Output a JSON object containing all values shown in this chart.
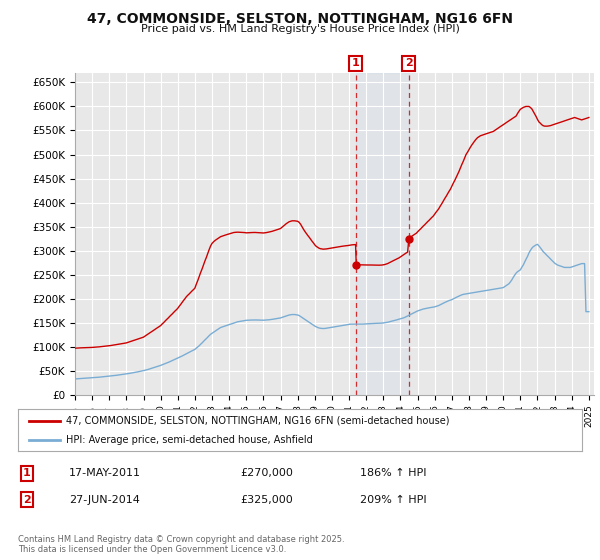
{
  "title": "47, COMMONSIDE, SELSTON, NOTTINGHAM, NG16 6FN",
  "subtitle": "Price paid vs. HM Land Registry's House Price Index (HPI)",
  "ylim": [
    0,
    670000
  ],
  "yticks": [
    0,
    50000,
    100000,
    150000,
    200000,
    250000,
    300000,
    350000,
    400000,
    450000,
    500000,
    550000,
    600000,
    650000
  ],
  "ytick_labels": [
    "£0",
    "£50K",
    "£100K",
    "£150K",
    "£200K",
    "£250K",
    "£300K",
    "£350K",
    "£400K",
    "£450K",
    "£500K",
    "£550K",
    "£600K",
    "£650K"
  ],
  "background_color": "#ffffff",
  "plot_bg_color": "#e8e8e8",
  "grid_color": "#ffffff",
  "hpi_color": "#7aadd4",
  "price_color": "#cc0000",
  "marker1_date": 2011.38,
  "marker1_price": 270000,
  "marker1_label": "1",
  "marker2_date": 2014.49,
  "marker2_price": 325000,
  "marker2_label": "2",
  "legend_line1": "47, COMMONSIDE, SELSTON, NOTTINGHAM, NG16 6FN (semi-detached house)",
  "legend_line2": "HPI: Average price, semi-detached house, Ashfield",
  "footnote": "Contains HM Land Registry data © Crown copyright and database right 2025.\nThis data is licensed under the Open Government Licence v3.0.",
  "table_row1_num": "1",
  "table_row1_date": "17-MAY-2011",
  "table_row1_price": "£270,000",
  "table_row1_hpi": "186% ↑ HPI",
  "table_row2_num": "2",
  "table_row2_date": "27-JUN-2014",
  "table_row2_price": "£325,000",
  "table_row2_hpi": "209% ↑ HPI",
  "hpi_years": [
    1995.0,
    1995.08,
    1995.17,
    1995.25,
    1995.33,
    1995.42,
    1995.5,
    1995.58,
    1995.67,
    1995.75,
    1995.83,
    1995.92,
    1996.0,
    1996.08,
    1996.17,
    1996.25,
    1996.33,
    1996.42,
    1996.5,
    1996.58,
    1996.67,
    1996.75,
    1996.83,
    1996.92,
    1997.0,
    1997.08,
    1997.17,
    1997.25,
    1997.33,
    1997.42,
    1997.5,
    1997.58,
    1997.67,
    1997.75,
    1997.83,
    1997.92,
    1998.0,
    1998.08,
    1998.17,
    1998.25,
    1998.33,
    1998.42,
    1998.5,
    1998.58,
    1998.67,
    1998.75,
    1998.83,
    1998.92,
    1999.0,
    1999.08,
    1999.17,
    1999.25,
    1999.33,
    1999.42,
    1999.5,
    1999.58,
    1999.67,
    1999.75,
    1999.83,
    1999.92,
    2000.0,
    2000.08,
    2000.17,
    2000.25,
    2000.33,
    2000.42,
    2000.5,
    2000.58,
    2000.67,
    2000.75,
    2000.83,
    2000.92,
    2001.0,
    2001.08,
    2001.17,
    2001.25,
    2001.33,
    2001.42,
    2001.5,
    2001.58,
    2001.67,
    2001.75,
    2001.83,
    2001.92,
    2002.0,
    2002.08,
    2002.17,
    2002.25,
    2002.33,
    2002.42,
    2002.5,
    2002.58,
    2002.67,
    2002.75,
    2002.83,
    2002.92,
    2003.0,
    2003.08,
    2003.17,
    2003.25,
    2003.33,
    2003.42,
    2003.5,
    2003.58,
    2003.67,
    2003.75,
    2003.83,
    2003.92,
    2004.0,
    2004.08,
    2004.17,
    2004.25,
    2004.33,
    2004.42,
    2004.5,
    2004.58,
    2004.67,
    2004.75,
    2004.83,
    2004.92,
    2005.0,
    2005.08,
    2005.17,
    2005.25,
    2005.33,
    2005.42,
    2005.5,
    2005.58,
    2005.67,
    2005.75,
    2005.83,
    2005.92,
    2006.0,
    2006.08,
    2006.17,
    2006.25,
    2006.33,
    2006.42,
    2006.5,
    2006.58,
    2006.67,
    2006.75,
    2006.83,
    2006.92,
    2007.0,
    2007.08,
    2007.17,
    2007.25,
    2007.33,
    2007.42,
    2007.5,
    2007.58,
    2007.67,
    2007.75,
    2007.83,
    2007.92,
    2008.0,
    2008.08,
    2008.17,
    2008.25,
    2008.33,
    2008.42,
    2008.5,
    2008.58,
    2008.67,
    2008.75,
    2008.83,
    2008.92,
    2009.0,
    2009.08,
    2009.17,
    2009.25,
    2009.33,
    2009.42,
    2009.5,
    2009.58,
    2009.67,
    2009.75,
    2009.83,
    2009.92,
    2010.0,
    2010.08,
    2010.17,
    2010.25,
    2010.33,
    2010.42,
    2010.5,
    2010.58,
    2010.67,
    2010.75,
    2010.83,
    2010.92,
    2011.0,
    2011.08,
    2011.17,
    2011.25,
    2011.33,
    2011.42,
    2011.5,
    2011.58,
    2011.67,
    2011.75,
    2011.83,
    2011.92,
    2012.0,
    2012.08,
    2012.17,
    2012.25,
    2012.33,
    2012.42,
    2012.5,
    2012.58,
    2012.67,
    2012.75,
    2012.83,
    2012.92,
    2013.0,
    2013.08,
    2013.17,
    2013.25,
    2013.33,
    2013.42,
    2013.5,
    2013.58,
    2013.67,
    2013.75,
    2013.83,
    2013.92,
    2014.0,
    2014.08,
    2014.17,
    2014.25,
    2014.33,
    2014.42,
    2014.5,
    2014.58,
    2014.67,
    2014.75,
    2014.83,
    2014.92,
    2015.0,
    2015.08,
    2015.17,
    2015.25,
    2015.33,
    2015.42,
    2015.5,
    2015.58,
    2015.67,
    2015.75,
    2015.83,
    2015.92,
    2016.0,
    2016.08,
    2016.17,
    2016.25,
    2016.33,
    2016.42,
    2016.5,
    2016.58,
    2016.67,
    2016.75,
    2016.83,
    2016.92,
    2017.0,
    2017.08,
    2017.17,
    2017.25,
    2017.33,
    2017.42,
    2017.5,
    2017.58,
    2017.67,
    2017.75,
    2017.83,
    2017.92,
    2018.0,
    2018.08,
    2018.17,
    2018.25,
    2018.33,
    2018.42,
    2018.5,
    2018.58,
    2018.67,
    2018.75,
    2018.83,
    2018.92,
    2019.0,
    2019.08,
    2019.17,
    2019.25,
    2019.33,
    2019.42,
    2019.5,
    2019.58,
    2019.67,
    2019.75,
    2019.83,
    2019.92,
    2020.0,
    2020.08,
    2020.17,
    2020.25,
    2020.33,
    2020.42,
    2020.5,
    2020.58,
    2020.67,
    2020.75,
    2020.83,
    2020.92,
    2021.0,
    2021.08,
    2021.17,
    2021.25,
    2021.33,
    2021.42,
    2021.5,
    2021.58,
    2021.67,
    2021.75,
    2021.83,
    2021.92,
    2022.0,
    2022.08,
    2022.17,
    2022.25,
    2022.33,
    2022.42,
    2022.5,
    2022.58,
    2022.67,
    2022.75,
    2022.83,
    2022.92,
    2023.0,
    2023.08,
    2023.17,
    2023.25,
    2023.33,
    2023.42,
    2023.5,
    2023.58,
    2023.67,
    2023.75,
    2023.83,
    2023.92,
    2024.0,
    2024.08,
    2024.17,
    2024.25,
    2024.33,
    2024.42,
    2024.5,
    2024.58,
    2024.67,
    2024.75,
    2024.83,
    2024.92,
    2025.0
  ],
  "hpi_values": [
    33000,
    33200,
    33400,
    33600,
    33800,
    34000,
    34200,
    34400,
    34600,
    34800,
    35000,
    35200,
    35500,
    35700,
    35900,
    36100,
    36400,
    36700,
    37000,
    37300,
    37600,
    37900,
    38200,
    38400,
    38700,
    39000,
    39400,
    39800,
    40200,
    40600,
    41000,
    41400,
    41800,
    42200,
    42600,
    43000,
    43500,
    44000,
    44500,
    45000,
    45500,
    46000,
    46600,
    47200,
    47800,
    48400,
    49000,
    49600,
    50200,
    51000,
    51800,
    52600,
    53500,
    54400,
    55300,
    56200,
    57200,
    58100,
    59100,
    60100,
    61200,
    62300,
    63400,
    64600,
    65800,
    67000,
    68300,
    69600,
    70900,
    72200,
    73500,
    74900,
    76300,
    77700,
    79200,
    80700,
    82200,
    83800,
    85400,
    86900,
    88500,
    90000,
    91500,
    93000,
    94500,
    97000,
    99500,
    102000,
    105000,
    108000,
    111000,
    114000,
    117000,
    120000,
    123000,
    126000,
    128000,
    130000,
    132000,
    134000,
    136000,
    138000,
    140000,
    141000,
    142000,
    143000,
    144000,
    145000,
    146000,
    147000,
    148000,
    149000,
    150000,
    151000,
    152000,
    152500,
    153000,
    153500,
    154000,
    154500,
    155000,
    155200,
    155400,
    155500,
    155600,
    155700,
    155800,
    155700,
    155600,
    155500,
    155400,
    155300,
    155200,
    155400,
    155600,
    155800,
    156100,
    156500,
    156900,
    157400,
    157900,
    158400,
    158900,
    159500,
    160000,
    161000,
    162000,
    163000,
    164000,
    165000,
    166000,
    166500,
    167000,
    167000,
    167000,
    166500,
    166000,
    165000,
    163000,
    161000,
    159000,
    157000,
    155000,
    153000,
    151000,
    149000,
    147000,
    145000,
    143000,
    141500,
    140000,
    139000,
    138500,
    138000,
    138000,
    138000,
    138500,
    139000,
    139500,
    140000,
    140500,
    141000,
    141500,
    142000,
    142500,
    143000,
    143500,
    144000,
    144500,
    145000,
    145500,
    146000,
    146500,
    147000,
    147000,
    147000,
    147000,
    147000,
    147000,
    147000,
    147000,
    147000,
    147200,
    147400,
    147600,
    147800,
    148000,
    148200,
    148400,
    148500,
    148600,
    148700,
    148800,
    148900,
    149000,
    149200,
    149500,
    150000,
    150500,
    151000,
    151700,
    152500,
    153200,
    154000,
    154800,
    155600,
    156400,
    157200,
    158000,
    159000,
    160000,
    161000,
    162500,
    164000,
    165500,
    167000,
    168500,
    170000,
    171500,
    173000,
    174500,
    175500,
    176500,
    177500,
    178500,
    179200,
    180000,
    180500,
    181000,
    181500,
    182000,
    182500,
    183000,
    184000,
    185000,
    186000,
    187500,
    189000,
    190500,
    192000,
    193500,
    195000,
    196000,
    197000,
    198000,
    199500,
    201000,
    202500,
    204000,
    205500,
    207000,
    208000,
    209000,
    209500,
    210000,
    210500,
    211000,
    211500,
    212000,
    212500,
    213000,
    213500,
    214000,
    214500,
    215000,
    215500,
    216000,
    216500,
    217000,
    217500,
    218000,
    218500,
    219000,
    219500,
    220000,
    220500,
    221000,
    221500,
    222000,
    222500,
    223000,
    225000,
    227000,
    229000,
    231000,
    235000,
    239000,
    244000,
    249000,
    253000,
    256000,
    258000,
    260000,
    265000,
    270000,
    276000,
    282000,
    288000,
    295000,
    300000,
    305000,
    308000,
    310000,
    312000,
    313000,
    310000,
    306000,
    302000,
    298000,
    295000,
    292000,
    289000,
    286000,
    283000,
    280000,
    277000,
    274000,
    272000,
    270000,
    269000,
    268000,
    267000,
    266000,
    265000,
    265000,
    265000,
    265000,
    265000,
    266000,
    267000,
    268000,
    269000,
    270000,
    271000,
    272000,
    273000,
    273000,
    273000,
    173000,
    173000,
    173000
  ],
  "price_years": [
    1995.0,
    1995.08,
    1995.17,
    1995.25,
    1995.33,
    1995.42,
    1995.5,
    1995.58,
    1995.67,
    1995.75,
    1995.83,
    1995.92,
    1996.0,
    1996.08,
    1996.17,
    1996.25,
    1996.33,
    1996.42,
    1996.5,
    1996.58,
    1996.67,
    1996.75,
    1996.83,
    1996.92,
    1997.0,
    1997.08,
    1997.17,
    1997.25,
    1997.33,
    1997.42,
    1997.5,
    1997.58,
    1997.67,
    1997.75,
    1997.83,
    1997.92,
    1998.0,
    1998.08,
    1998.17,
    1998.25,
    1998.33,
    1998.42,
    1998.5,
    1998.58,
    1998.67,
    1998.75,
    1998.83,
    1998.92,
    1999.0,
    1999.08,
    1999.17,
    1999.25,
    1999.33,
    1999.42,
    1999.5,
    1999.58,
    1999.67,
    1999.75,
    1999.83,
    1999.92,
    2000.0,
    2000.08,
    2000.17,
    2000.25,
    2000.33,
    2000.42,
    2000.5,
    2000.58,
    2000.67,
    2000.75,
    2000.83,
    2000.92,
    2001.0,
    2001.08,
    2001.17,
    2001.25,
    2001.33,
    2001.42,
    2001.5,
    2001.58,
    2001.67,
    2001.75,
    2001.83,
    2001.92,
    2002.0,
    2002.08,
    2002.17,
    2002.25,
    2002.33,
    2002.42,
    2002.5,
    2002.58,
    2002.67,
    2002.75,
    2002.83,
    2002.92,
    2003.0,
    2003.08,
    2003.17,
    2003.25,
    2003.33,
    2003.42,
    2003.5,
    2003.58,
    2003.67,
    2003.75,
    2003.83,
    2003.92,
    2004.0,
    2004.08,
    2004.17,
    2004.25,
    2004.33,
    2004.42,
    2004.5,
    2004.58,
    2004.67,
    2004.75,
    2004.83,
    2004.92,
    2005.0,
    2005.08,
    2005.17,
    2005.25,
    2005.33,
    2005.42,
    2005.5,
    2005.58,
    2005.67,
    2005.75,
    2005.83,
    2005.92,
    2006.0,
    2006.08,
    2006.17,
    2006.25,
    2006.33,
    2006.42,
    2006.5,
    2006.58,
    2006.67,
    2006.75,
    2006.83,
    2006.92,
    2007.0,
    2007.08,
    2007.17,
    2007.25,
    2007.33,
    2007.42,
    2007.5,
    2007.58,
    2007.67,
    2007.75,
    2007.83,
    2007.92,
    2008.0,
    2008.08,
    2008.17,
    2008.25,
    2008.33,
    2008.42,
    2008.5,
    2008.58,
    2008.67,
    2008.75,
    2008.83,
    2008.92,
    2009.0,
    2009.08,
    2009.17,
    2009.25,
    2009.33,
    2009.42,
    2009.5,
    2009.58,
    2009.67,
    2009.75,
    2009.83,
    2009.92,
    2010.0,
    2010.08,
    2010.17,
    2010.25,
    2010.33,
    2010.42,
    2010.5,
    2010.58,
    2010.67,
    2010.75,
    2010.83,
    2010.92,
    2011.0,
    2011.08,
    2011.17,
    2011.25,
    2011.33,
    2011.38,
    2011.42,
    2011.5,
    2011.58,
    2011.67,
    2011.75,
    2011.83,
    2011.92,
    2012.0,
    2012.08,
    2012.17,
    2012.25,
    2012.33,
    2012.42,
    2012.5,
    2012.58,
    2012.67,
    2012.75,
    2012.83,
    2012.92,
    2013.0,
    2013.08,
    2013.17,
    2013.25,
    2013.33,
    2013.42,
    2013.5,
    2013.58,
    2013.67,
    2013.75,
    2013.83,
    2013.92,
    2014.0,
    2014.08,
    2014.17,
    2014.25,
    2014.33,
    2014.42,
    2014.49,
    2014.5,
    2014.58,
    2014.67,
    2014.75,
    2014.83,
    2014.92,
    2015.0,
    2015.08,
    2015.17,
    2015.25,
    2015.33,
    2015.42,
    2015.5,
    2015.58,
    2015.67,
    2015.75,
    2015.83,
    2015.92,
    2016.0,
    2016.08,
    2016.17,
    2016.25,
    2016.33,
    2016.42,
    2016.5,
    2016.58,
    2016.67,
    2016.75,
    2016.83,
    2016.92,
    2017.0,
    2017.08,
    2017.17,
    2017.25,
    2017.33,
    2017.42,
    2017.5,
    2017.58,
    2017.67,
    2017.75,
    2017.83,
    2017.92,
    2018.0,
    2018.08,
    2018.17,
    2018.25,
    2018.33,
    2018.42,
    2018.5,
    2018.58,
    2018.67,
    2018.75,
    2018.83,
    2018.92,
    2019.0,
    2019.08,
    2019.17,
    2019.25,
    2019.33,
    2019.42,
    2019.5,
    2019.58,
    2019.67,
    2019.75,
    2019.83,
    2019.92,
    2020.0,
    2020.08,
    2020.17,
    2020.25,
    2020.33,
    2020.42,
    2020.5,
    2020.58,
    2020.67,
    2020.75,
    2020.83,
    2020.92,
    2021.0,
    2021.08,
    2021.17,
    2021.25,
    2021.33,
    2021.42,
    2021.5,
    2021.58,
    2021.67,
    2021.75,
    2021.83,
    2021.92,
    2022.0,
    2022.08,
    2022.17,
    2022.25,
    2022.33,
    2022.42,
    2022.5,
    2022.58,
    2022.67,
    2022.75,
    2022.83,
    2022.92,
    2023.0,
    2023.08,
    2023.17,
    2023.25,
    2023.33,
    2023.42,
    2023.5,
    2023.58,
    2023.67,
    2023.75,
    2023.83,
    2023.92,
    2024.0,
    2024.08,
    2024.17,
    2024.25,
    2024.33,
    2024.42,
    2024.5,
    2024.58,
    2024.67,
    2024.75,
    2024.83,
    2024.92,
    2025.0
  ],
  "price_values": [
    97000,
    97200,
    97400,
    97600,
    97700,
    97800,
    97900,
    98000,
    98100,
    98200,
    98300,
    98400,
    98600,
    98800,
    99000,
    99200,
    99500,
    99800,
    100100,
    100400,
    100700,
    101000,
    101300,
    101600,
    102000,
    102500,
    103000,
    103500,
    104000,
    104500,
    105000,
    105500,
    106000,
    106500,
    107000,
    107500,
    108000,
    109000,
    110000,
    111000,
    112000,
    113000,
    114000,
    115000,
    116000,
    117000,
    118000,
    119000,
    120000,
    122000,
    124000,
    126000,
    128000,
    130000,
    132000,
    134000,
    136000,
    138000,
    140000,
    142000,
    144000,
    147000,
    150000,
    153000,
    156000,
    159000,
    162000,
    165000,
    168000,
    171000,
    174000,
    177000,
    180000,
    184000,
    188000,
    192000,
    196000,
    200000,
    204000,
    207000,
    210000,
    213000,
    216000,
    219000,
    222000,
    230000,
    238000,
    246000,
    254000,
    262000,
    270000,
    278000,
    286000,
    294000,
    302000,
    310000,
    315000,
    318000,
    321000,
    323000,
    325000,
    327000,
    329000,
    330000,
    331000,
    332000,
    333000,
    334000,
    335000,
    336000,
    337000,
    337500,
    338000,
    338200,
    338400,
    338300,
    338100,
    337900,
    337700,
    337500,
    337000,
    337200,
    337400,
    337500,
    337600,
    337700,
    337800,
    337600,
    337400,
    337200,
    337000,
    336800,
    336700,
    337000,
    337500,
    338000,
    338700,
    339400,
    340100,
    341000,
    342000,
    343000,
    344000,
    345000,
    346000,
    348500,
    351000,
    353500,
    356000,
    358000,
    360000,
    361000,
    362000,
    362000,
    362000,
    361500,
    361000,
    359000,
    355000,
    350000,
    345000,
    340000,
    336000,
    332000,
    328000,
    324000,
    320000,
    316000,
    312000,
    309000,
    307000,
    305000,
    304000,
    303500,
    303000,
    303200,
    303500,
    304000,
    304500,
    305000,
    305500,
    306000,
    306500,
    307000,
    307500,
    308000,
    308500,
    309000,
    309500,
    310000,
    310200,
    310500,
    311000,
    311500,
    312000,
    312300,
    312500,
    312600,
    270000,
    270200,
    270300,
    270400,
    270300,
    270200,
    270100,
    270000,
    270100,
    270200,
    270100,
    270000,
    269900,
    269800,
    269700,
    269600,
    269700,
    269800,
    270000,
    270500,
    271000,
    272000,
    273000,
    274500,
    276000,
    277500,
    279000,
    280500,
    282000,
    283500,
    285000,
    287000,
    289000,
    291000,
    293000,
    295000,
    297000,
    325000,
    326000,
    328000,
    330000,
    332000,
    334000,
    336000,
    339000,
    342000,
    345000,
    348000,
    351000,
    354000,
    357000,
    360000,
    363000,
    366000,
    369000,
    372000,
    376000,
    380000,
    384000,
    388000,
    393000,
    398000,
    403000,
    408000,
    413000,
    418000,
    423000,
    428000,
    434000,
    440000,
    446000,
    452000,
    458000,
    465000,
    472000,
    479000,
    486000,
    493000,
    500000,
    505000,
    510000,
    515000,
    520000,
    524000,
    528000,
    532000,
    535000,
    537000,
    539000,
    540000,
    541000,
    542000,
    543000,
    544000,
    545000,
    546000,
    547000,
    548000,
    550000,
    552000,
    554000,
    556000,
    558000,
    560000,
    562000,
    564000,
    566000,
    568000,
    570000,
    572000,
    574000,
    576000,
    578000,
    580000,
    585000,
    590000,
    594000,
    596000,
    598000,
    599000,
    600000,
    600000,
    600000,
    598000,
    595000,
    590000,
    585000,
    579000,
    573000,
    568000,
    565000,
    562000,
    560000,
    559000,
    559000,
    559000,
    559500,
    560000,
    561000,
    562000,
    563000,
    564000,
    565000,
    566000,
    567000,
    568000,
    569000,
    570000,
    571000,
    572000,
    573000,
    574000,
    575000,
    576000,
    577000,
    576000,
    575000,
    574000,
    573000,
    572000,
    573000,
    574000,
    575000,
    576000,
    577000
  ]
}
